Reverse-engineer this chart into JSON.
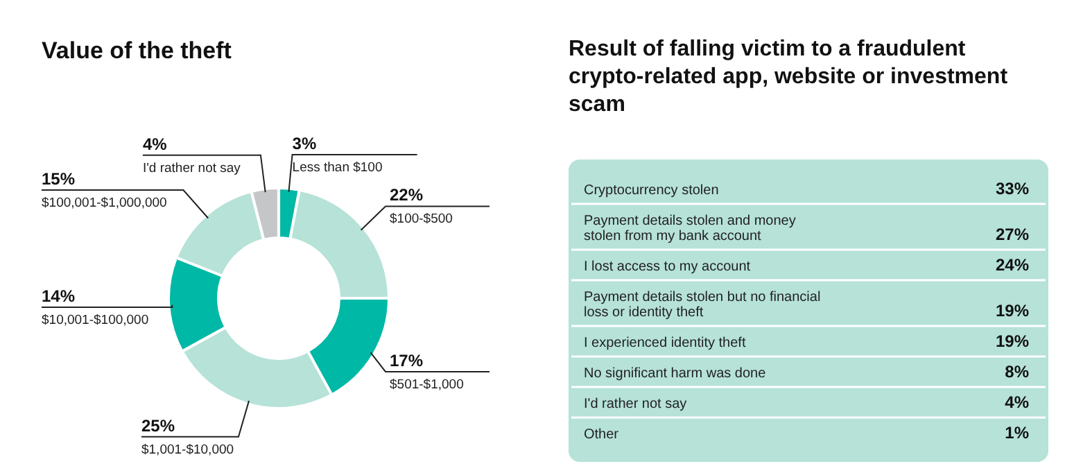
{
  "chart_data": [
    {
      "type": "donut",
      "title": "Value of the theft",
      "categories": [
        "Less than $100",
        "$100-$500",
        "$501-$1,000",
        "$1,001-$10,000",
        "$10,001-$100,000",
        "$100,001-$1,000,000",
        "I'd rather not say"
      ],
      "values": [
        3,
        22,
        17,
        25,
        14,
        15,
        4
      ],
      "value_labels": [
        "3%",
        "22%",
        "17%",
        "25%",
        "14%",
        "15%",
        "4%"
      ],
      "colors": [
        "#00b8a6",
        "#b6e2d8",
        "#00b8a6",
        "#b6e2d8",
        "#00b8a6",
        "#b6e2d8",
        "#c4c6c8"
      ]
    },
    {
      "type": "other",
      "title": "Result of falling victim to a fraudulent crypto-related app, website or investment scam",
      "categories": [
        "Cryptocurrency stolen",
        "Payment details stolen and money\nstolen from my bank account",
        "I lost access to my account",
        "Payment details stolen but no financial\nloss or identity theft",
        "I experienced identity theft",
        "No significant harm was done",
        "I'd rather not say",
        "Other"
      ],
      "value_labels": [
        "33%",
        "27%",
        "24%",
        "19%",
        "19%",
        "8%",
        "4%",
        "1%"
      ],
      "color": "#b6e2d8"
    }
  ]
}
